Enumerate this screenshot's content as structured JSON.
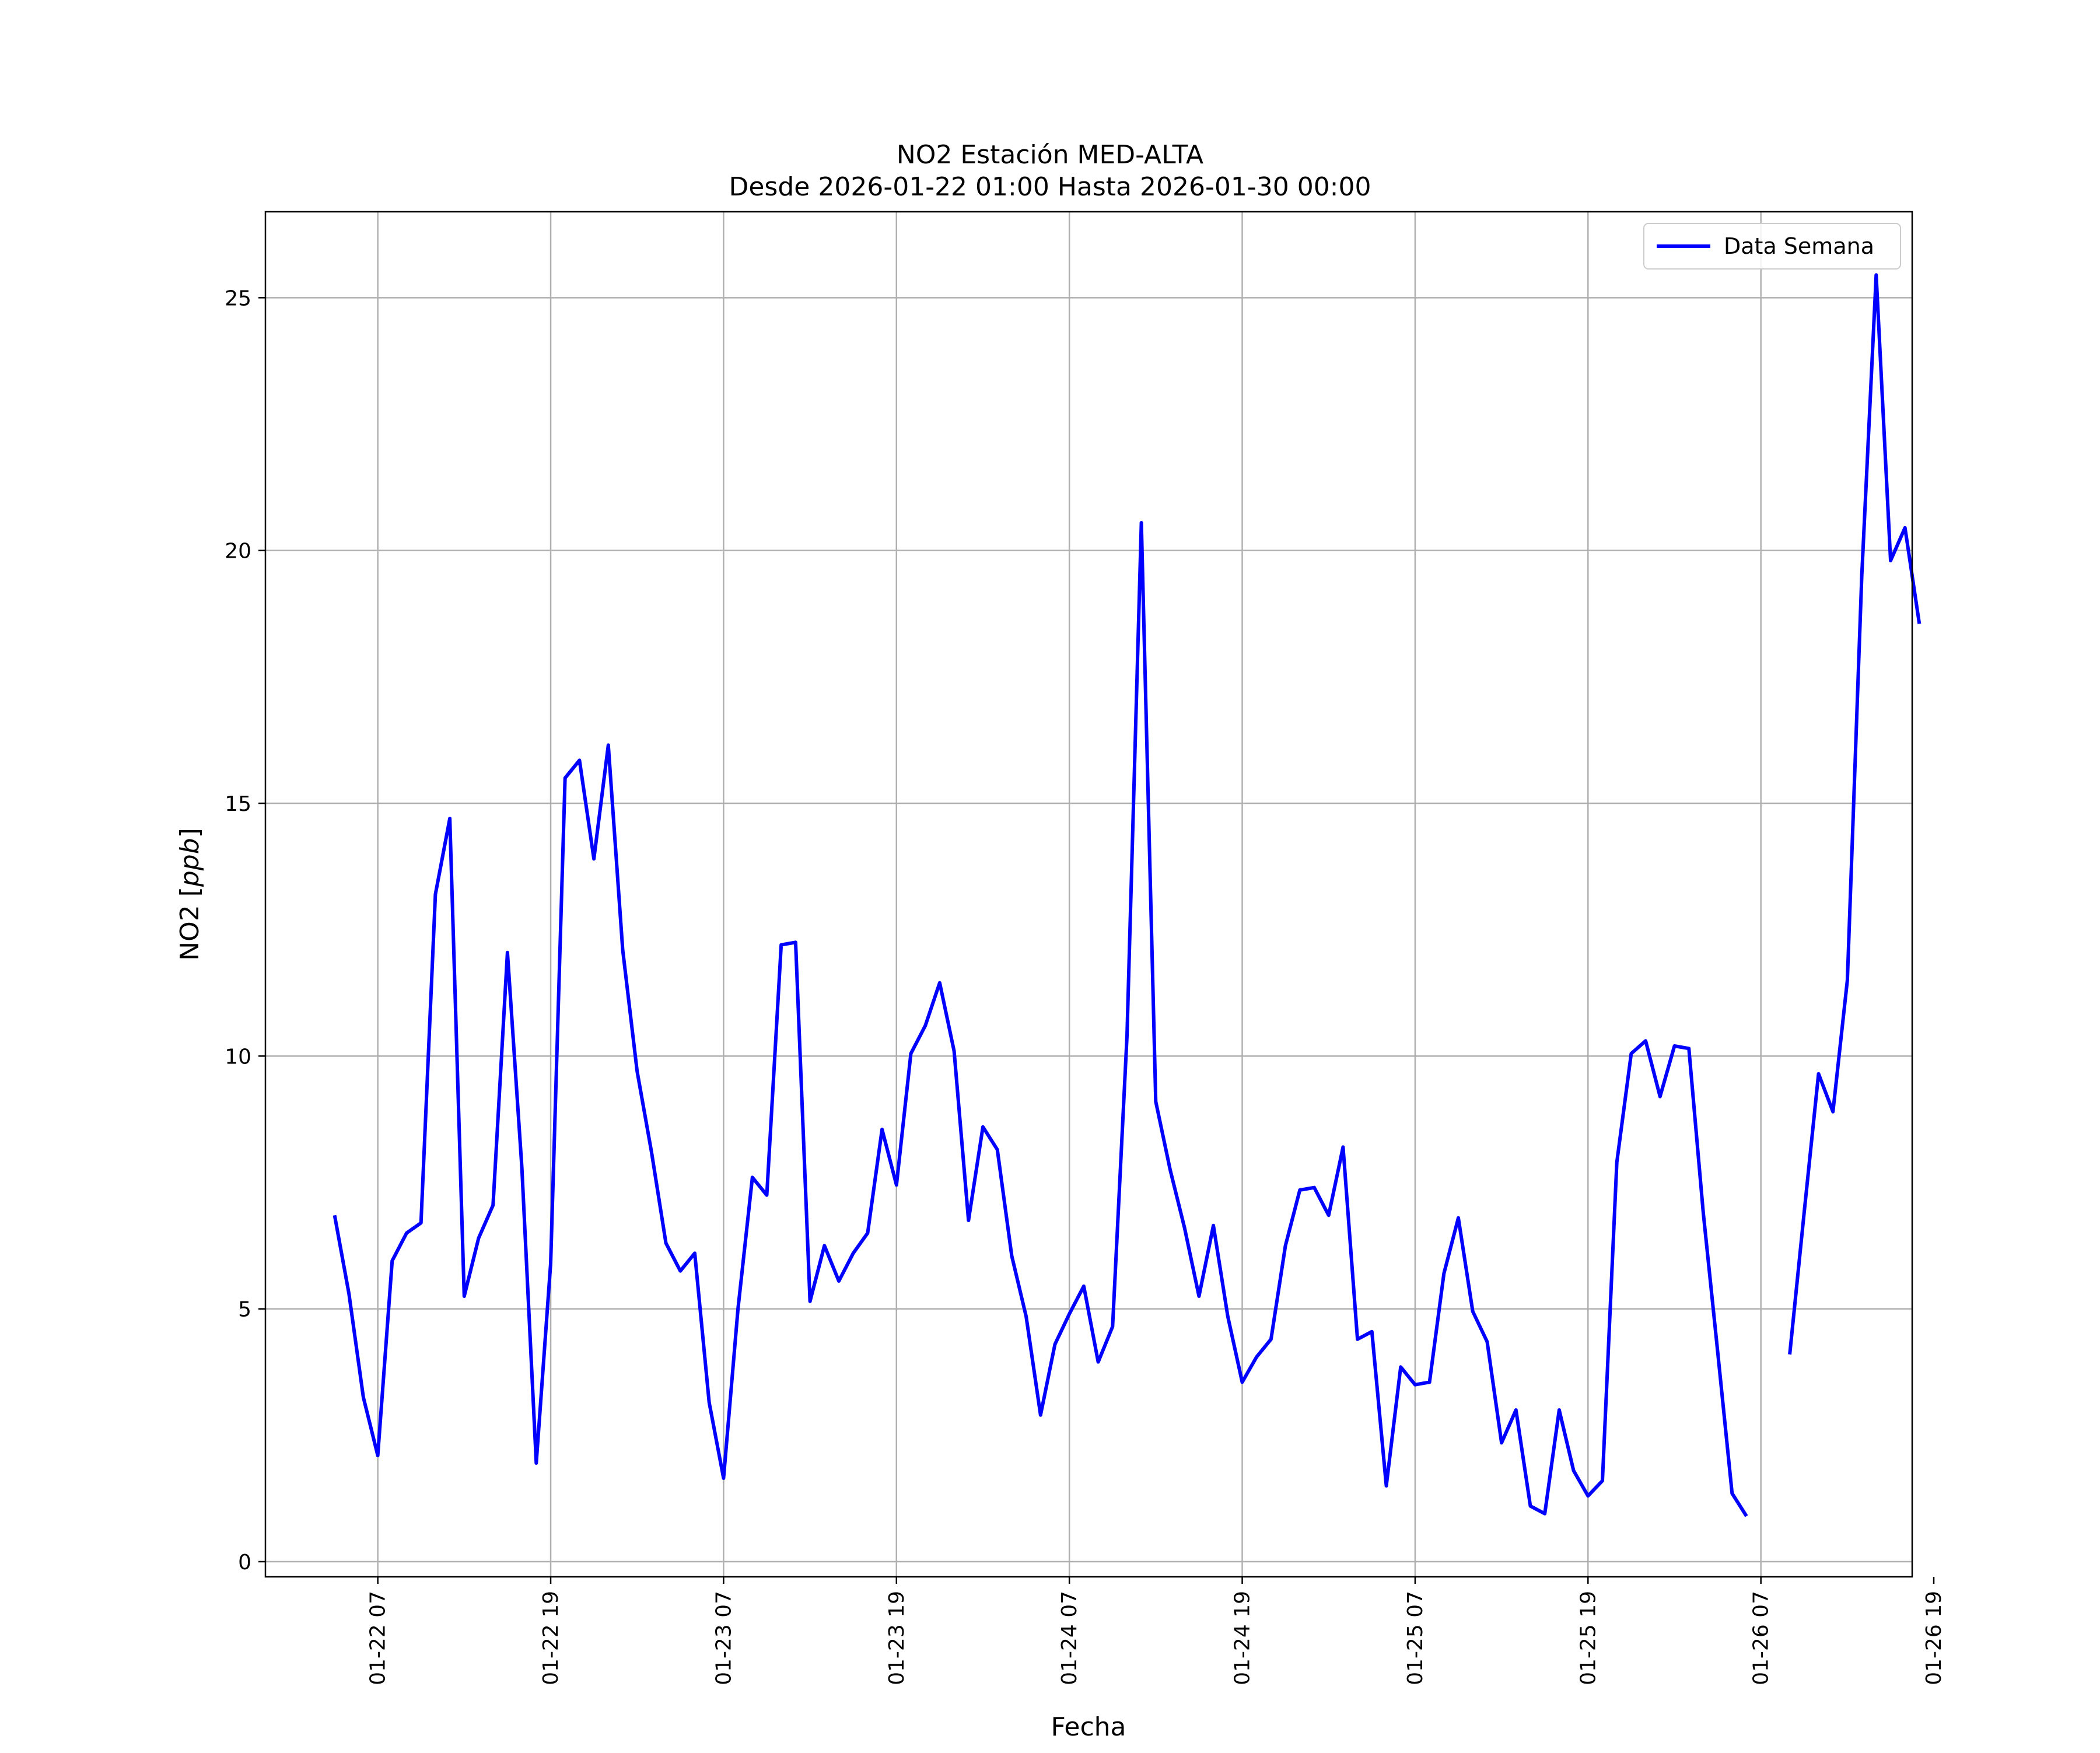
{
  "chart_data": {
    "type": "line",
    "title": "NO2 Estación MED-ALTA",
    "subtitle": "Desde 2026-01-22 01:00 Hasta 2026-01-30 00:00",
    "xlabel": "Fecha",
    "ylabel_prefix": "NO2 [",
    "ylabel_unit": "ppb",
    "ylabel_suffix": "]",
    "x_unit": "hours since 2026-01-22 00:00",
    "xlim": [
      -0.8,
      113.5
    ],
    "ylim": [
      -0.3,
      26.7
    ],
    "grid": true,
    "legend_position": "top-right",
    "x_ticks": [
      {
        "value": 7,
        "label": "01-22 07"
      },
      {
        "value": 19,
        "label": "01-22 19"
      },
      {
        "value": 31,
        "label": "01-23 07"
      },
      {
        "value": 43,
        "label": "01-23 19"
      },
      {
        "value": 55,
        "label": "01-24 07"
      },
      {
        "value": 67,
        "label": "01-24 19"
      },
      {
        "value": 79,
        "label": "01-25 07"
      },
      {
        "value": 91,
        "label": "01-25 19"
      },
      {
        "value": 103,
        "label": "01-26 07"
      },
      {
        "value": 115,
        "label": "01-26 19"
      }
    ],
    "y_ticks": [
      {
        "value": 0,
        "label": "0"
      },
      {
        "value": 5,
        "label": "5"
      },
      {
        "value": 10,
        "label": "10"
      },
      {
        "value": 15,
        "label": "15"
      },
      {
        "value": 20,
        "label": "20"
      },
      {
        "value": 25,
        "label": "25"
      }
    ],
    "series": [
      {
        "name": "Data Semana",
        "color": "#0000ff",
        "segments": [
          {
            "x_start": 4,
            "values": [
              6.85,
              5.3,
              3.25,
              2.1,
              5.95,
              6.5,
              6.7,
              13.2,
              14.7,
              5.25,
              6.4,
              7.05,
              12.05,
              7.8,
              1.95,
              5.9,
              15.5,
              15.85,
              13.9,
              16.15,
              12.1,
              9.7,
              8.1,
              6.3,
              5.75,
              6.1,
              3.15,
              1.65,
              5.0,
              7.6,
              7.25,
              12.2,
              12.25,
              5.15,
              6.25,
              5.55,
              6.1,
              6.5,
              8.55,
              7.45,
              10.05,
              10.6,
              11.45,
              10.1,
              6.75,
              8.6,
              8.15,
              6.05,
              4.85,
              2.9,
              4.3,
              4.9,
              5.45,
              3.95,
              4.65,
              10.4,
              20.55,
              9.1,
              7.75,
              6.6,
              5.25,
              6.65,
              4.85,
              3.55,
              4.05,
              4.4,
              6.25,
              7.35,
              7.4,
              6.85,
              8.2,
              4.4,
              4.55,
              1.5,
              3.85,
              3.5,
              3.55,
              5.7,
              6.8,
              4.95,
              4.35,
              2.35,
              3.0,
              1.1,
              0.95,
              3.0,
              1.8,
              1.3,
              1.6,
              7.9,
              10.05,
              10.3,
              9.2,
              10.2,
              10.15,
              6.9,
              4.15,
              1.35,
              0.9
            ]
          },
          {
            "x_start": 105,
            "values": [
              4.1,
              6.9,
              9.65,
              8.9,
              11.5,
              19.5,
              25.45,
              19.8,
              20.45,
              18.55
            ]
          }
        ]
      }
    ]
  }
}
